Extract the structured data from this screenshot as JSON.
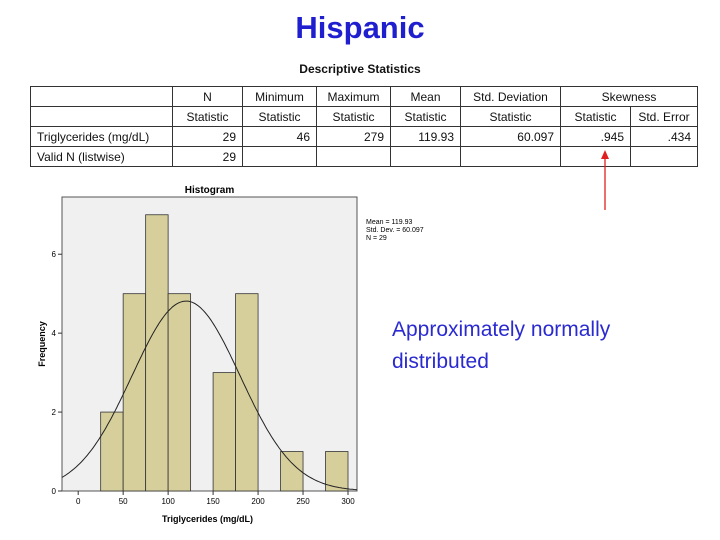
{
  "title": "Hispanic",
  "table": {
    "caption": "Descriptive Statistics",
    "header": [
      [
        null,
        "N",
        "Minimum",
        "Maximum",
        "Mean",
        "Std. Deviation",
        "Skewness"
      ],
      [
        null,
        "Statistic",
        "Statistic",
        "Statistic",
        "Statistic",
        "Statistic",
        "Statistic",
        "Std. Error"
      ]
    ],
    "rows": [
      [
        "Triglycerides (mg/dL)",
        "29",
        "46",
        "279",
        "119.93",
        "60.097",
        ".945",
        ".434"
      ],
      [
        "Valid N (listwise)",
        "29",
        null,
        null,
        null,
        null,
        null,
        null
      ]
    ]
  },
  "annotation": [
    "Approximately normally",
    "distributed"
  ],
  "chart_data": {
    "type": "histogram",
    "title": "Histogram",
    "x_label": "Triglycerides (mg/dL)",
    "y_label": "Frequency",
    "bins": [
      25,
      50,
      75,
      100,
      125,
      150,
      175,
      200,
      225,
      250,
      275,
      300
    ],
    "values": [
      2,
      5,
      7,
      5,
      0,
      3,
      5,
      0,
      1,
      0,
      1
    ],
    "color": "#d6cf9c",
    "xlim": [
      -18,
      310
    ],
    "xticks": [
      0,
      50,
      100,
      150,
      200,
      250,
      300
    ],
    "ylim": [
      0,
      7.45
    ],
    "yticks": [
      0,
      2,
      4,
      6
    ],
    "legend": [
      "Mean = 119.93",
      "Std. Dev. = 60.097",
      "N = 29"
    ]
  }
}
